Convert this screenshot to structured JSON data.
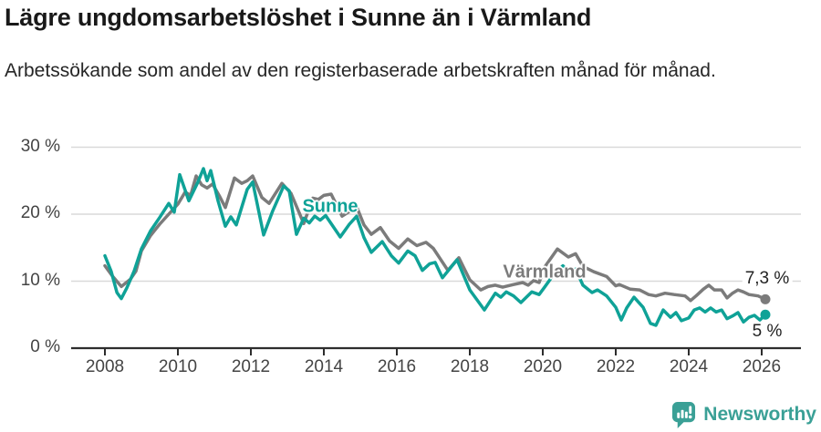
{
  "title": "Lägre ungdomsarbetslöshet i Sunne än i Värmland",
  "subtitle": "Arbetssökande som andel av den registerbaserade arbetskraften månad för månad.",
  "footer": {
    "brand": "Newsworthy",
    "brand_color": "#3AA096"
  },
  "colors": {
    "sunne": "#0FA297",
    "varmland": "#7B7B7B",
    "grid": "#D9D9D9",
    "axis": "#2D2D2D",
    "axis_text": "#444444",
    "annotation_text": "#222222"
  },
  "chart_data": {
    "type": "line",
    "title": "Lägre ungdomsarbetslöshet i Sunne än i Värmland",
    "subtitle": "Arbetssökande som andel av den registerbaserade arbetskraften månad för månad.",
    "xlabel": "",
    "ylabel": "",
    "grid": "horizontal",
    "legend_position": "inline-labels",
    "x_axis": {
      "tick_years": [
        2008,
        2010,
        2012,
        2014,
        2016,
        2018,
        2020,
        2022,
        2024,
        2026
      ],
      "tick_labels": [
        "2008",
        "2010",
        "2012",
        "2014",
        "2016",
        "2018",
        "2020",
        "2022",
        "2024",
        "2026"
      ],
      "range_years": [
        2008,
        2026.2
      ]
    },
    "y_axis": {
      "tick_values": [
        0,
        10,
        20,
        30
      ],
      "tick_labels": [
        "0 %",
        "10 %",
        "20 %",
        "30 %"
      ],
      "unit": "%",
      "range": [
        0,
        31.5
      ]
    },
    "series": [
      {
        "name": "Sunne",
        "color": "#0FA297",
        "end_label": "5 %",
        "last_value": 5.0,
        "points": [
          [
            2008.0,
            13.8
          ],
          [
            2008.17,
            11.5
          ],
          [
            2008.33,
            8.3
          ],
          [
            2008.45,
            7.4
          ],
          [
            2008.6,
            9.0
          ],
          [
            2008.8,
            11.5
          ],
          [
            2009.0,
            14.8
          ],
          [
            2009.25,
            17.5
          ],
          [
            2009.5,
            19.5
          ],
          [
            2009.75,
            21.6
          ],
          [
            2009.9,
            20.3
          ],
          [
            2010.05,
            25.9
          ],
          [
            2010.3,
            22.0
          ],
          [
            2010.55,
            24.8
          ],
          [
            2010.7,
            26.8
          ],
          [
            2010.8,
            25.0
          ],
          [
            2010.9,
            26.5
          ],
          [
            2011.1,
            22.0
          ],
          [
            2011.3,
            18.2
          ],
          [
            2011.45,
            19.6
          ],
          [
            2011.6,
            18.4
          ],
          [
            2011.9,
            23.7
          ],
          [
            2012.05,
            24.8
          ],
          [
            2012.35,
            16.9
          ],
          [
            2012.6,
            20.5
          ],
          [
            2012.9,
            24.2
          ],
          [
            2013.05,
            23.5
          ],
          [
            2013.25,
            17.0
          ],
          [
            2013.45,
            19.4
          ],
          [
            2013.6,
            18.7
          ],
          [
            2013.75,
            19.7
          ],
          [
            2013.9,
            19.1
          ],
          [
            2014.05,
            19.8
          ],
          [
            2014.45,
            16.6
          ],
          [
            2014.7,
            18.5
          ],
          [
            2014.9,
            19.7
          ],
          [
            2015.1,
            16.5
          ],
          [
            2015.3,
            14.3
          ],
          [
            2015.6,
            15.9
          ],
          [
            2015.85,
            13.8
          ],
          [
            2016.05,
            12.7
          ],
          [
            2016.3,
            14.5
          ],
          [
            2016.5,
            13.8
          ],
          [
            2016.7,
            11.6
          ],
          [
            2016.9,
            12.6
          ],
          [
            2017.05,
            12.8
          ],
          [
            2017.25,
            10.5
          ],
          [
            2017.65,
            13.2
          ],
          [
            2018.0,
            8.7
          ],
          [
            2018.4,
            5.7
          ],
          [
            2018.7,
            8.2
          ],
          [
            2018.85,
            7.6
          ],
          [
            2019.0,
            8.4
          ],
          [
            2019.2,
            7.8
          ],
          [
            2019.4,
            6.8
          ],
          [
            2019.7,
            8.4
          ],
          [
            2019.9,
            8.0
          ],
          [
            2020.05,
            9.1
          ],
          [
            2020.3,
            11.0
          ],
          [
            2020.55,
            12.3
          ],
          [
            2020.75,
            11.3
          ],
          [
            2020.9,
            11.8
          ],
          [
            2021.1,
            9.4
          ],
          [
            2021.35,
            8.3
          ],
          [
            2021.5,
            8.7
          ],
          [
            2021.75,
            7.8
          ],
          [
            2022.0,
            6.1
          ],
          [
            2022.15,
            4.2
          ],
          [
            2022.3,
            6.0
          ],
          [
            2022.5,
            7.6
          ],
          [
            2022.75,
            6.1
          ],
          [
            2022.95,
            3.7
          ],
          [
            2023.1,
            3.4
          ],
          [
            2023.3,
            5.7
          ],
          [
            2023.5,
            4.6
          ],
          [
            2023.65,
            5.3
          ],
          [
            2023.8,
            4.1
          ],
          [
            2024.0,
            4.5
          ],
          [
            2024.15,
            5.7
          ],
          [
            2024.3,
            6.0
          ],
          [
            2024.45,
            5.4
          ],
          [
            2024.6,
            6.0
          ],
          [
            2024.75,
            5.4
          ],
          [
            2024.9,
            5.7
          ],
          [
            2025.05,
            4.4
          ],
          [
            2025.2,
            4.8
          ],
          [
            2025.35,
            5.3
          ],
          [
            2025.5,
            3.9
          ],
          [
            2025.65,
            4.6
          ],
          [
            2025.8,
            4.9
          ],
          [
            2025.95,
            4.2
          ],
          [
            2026.1,
            5.0
          ]
        ]
      },
      {
        "name": "Värmland",
        "color": "#7B7B7B",
        "end_label": "7,3 %",
        "last_value": 7.3,
        "points": [
          [
            2008.0,
            12.3
          ],
          [
            2008.2,
            10.8
          ],
          [
            2008.45,
            9.2
          ],
          [
            2008.7,
            10.3
          ],
          [
            2008.85,
            11.5
          ],
          [
            2009.0,
            14.5
          ],
          [
            2009.25,
            16.8
          ],
          [
            2009.5,
            18.5
          ],
          [
            2009.75,
            20.0
          ],
          [
            2010.0,
            21.5
          ],
          [
            2010.2,
            23.3
          ],
          [
            2010.35,
            22.8
          ],
          [
            2010.5,
            25.7
          ],
          [
            2010.65,
            24.4
          ],
          [
            2010.8,
            23.9
          ],
          [
            2010.95,
            24.5
          ],
          [
            2011.15,
            22.6
          ],
          [
            2011.3,
            21.0
          ],
          [
            2011.55,
            25.4
          ],
          [
            2011.75,
            24.6
          ],
          [
            2011.9,
            25.0
          ],
          [
            2012.05,
            25.7
          ],
          [
            2012.3,
            22.5
          ],
          [
            2012.5,
            21.6
          ],
          [
            2012.85,
            24.6
          ],
          [
            2013.1,
            23.1
          ],
          [
            2013.45,
            18.6
          ],
          [
            2013.7,
            22.4
          ],
          [
            2013.85,
            22.2
          ],
          [
            2014.0,
            22.8
          ],
          [
            2014.2,
            23.0
          ],
          [
            2014.5,
            19.7
          ],
          [
            2014.9,
            21.1
          ],
          [
            2015.1,
            18.4
          ],
          [
            2015.3,
            17.0
          ],
          [
            2015.55,
            18.0
          ],
          [
            2015.8,
            16.0
          ],
          [
            2016.05,
            14.9
          ],
          [
            2016.3,
            16.3
          ],
          [
            2016.55,
            15.3
          ],
          [
            2016.8,
            15.8
          ],
          [
            2017.0,
            14.9
          ],
          [
            2017.4,
            11.6
          ],
          [
            2017.7,
            13.5
          ],
          [
            2018.0,
            10.2
          ],
          [
            2018.3,
            8.7
          ],
          [
            2018.5,
            9.2
          ],
          [
            2018.7,
            9.4
          ],
          [
            2018.9,
            9.1
          ],
          [
            2019.2,
            9.5
          ],
          [
            2019.45,
            9.8
          ],
          [
            2019.6,
            9.4
          ],
          [
            2019.75,
            10.1
          ],
          [
            2019.9,
            9.8
          ],
          [
            2020.05,
            12.1
          ],
          [
            2020.4,
            14.8
          ],
          [
            2020.7,
            13.6
          ],
          [
            2020.9,
            14.1
          ],
          [
            2021.1,
            12.2
          ],
          [
            2021.4,
            11.4
          ],
          [
            2021.75,
            10.7
          ],
          [
            2022.0,
            9.3
          ],
          [
            2022.1,
            9.5
          ],
          [
            2022.4,
            8.8
          ],
          [
            2022.65,
            8.7
          ],
          [
            2022.9,
            8.0
          ],
          [
            2023.1,
            7.8
          ],
          [
            2023.35,
            8.2
          ],
          [
            2023.6,
            8.0
          ],
          [
            2023.9,
            7.8
          ],
          [
            2024.05,
            7.1
          ],
          [
            2024.2,
            7.8
          ],
          [
            2024.4,
            8.8
          ],
          [
            2024.55,
            9.4
          ],
          [
            2024.7,
            8.7
          ],
          [
            2024.9,
            8.7
          ],
          [
            2025.05,
            7.5
          ],
          [
            2025.2,
            8.2
          ],
          [
            2025.35,
            8.7
          ],
          [
            2025.5,
            8.4
          ],
          [
            2025.65,
            8.0
          ],
          [
            2025.9,
            7.8
          ],
          [
            2026.1,
            7.3
          ]
        ]
      }
    ]
  }
}
